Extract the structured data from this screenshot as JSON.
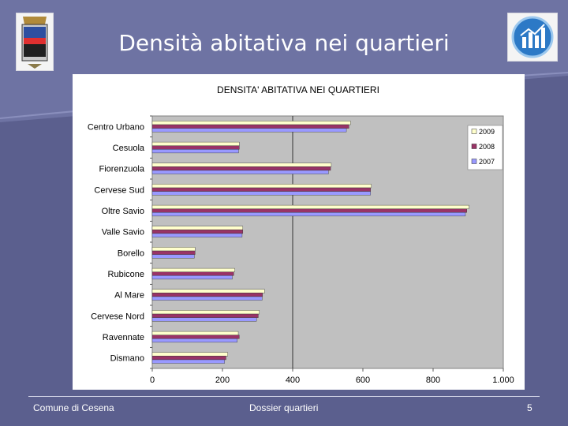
{
  "slide": {
    "title": "Densità abitativa nei quartieri",
    "footer_left": "Comune di Cesena",
    "footer_center": "Dossier quartieri",
    "page_number": "5"
  },
  "colors": {
    "background": "#5b5f8e",
    "plot_area": "#c0c0c0",
    "series_2009": "#ffffcc",
    "series_2008": "#993366",
    "series_2007": "#9999ff"
  },
  "icons": [
    "city-crest-icon",
    "bar-chart-logo-icon"
  ],
  "chart_data": {
    "type": "bar",
    "orientation": "horizontal",
    "title": "DENSITA' ABITATIVA NEI QUARTIERI",
    "categories": [
      "Centro Urbano",
      "Cesuola",
      "Fiorenzuola",
      "Cervese Sud",
      "Oltre Savio",
      "Valle Savio",
      "Borello",
      "Rubicone",
      "Al Mare",
      "Cervese Nord",
      "Ravennate",
      "Dismano"
    ],
    "series": [
      {
        "name": "2009",
        "color": "#ffffcc",
        "values": [
          565,
          248,
          510,
          624,
          902,
          258,
          122,
          235,
          320,
          305,
          245,
          215
        ]
      },
      {
        "name": "2008",
        "color": "#993366",
        "values": [
          560,
          248,
          508,
          622,
          896,
          258,
          122,
          232,
          314,
          302,
          248,
          210
        ]
      },
      {
        "name": "2007",
        "color": "#9999ff",
        "values": [
          553,
          246,
          502,
          622,
          892,
          256,
          120,
          228,
          313,
          297,
          242,
          206
        ]
      }
    ],
    "x_ticks": [
      "0",
      "200",
      "400",
      "600",
      "800",
      "1.000"
    ],
    "xlim": [
      0,
      1000
    ],
    "gridline_at": 400,
    "legend_position": "right"
  }
}
